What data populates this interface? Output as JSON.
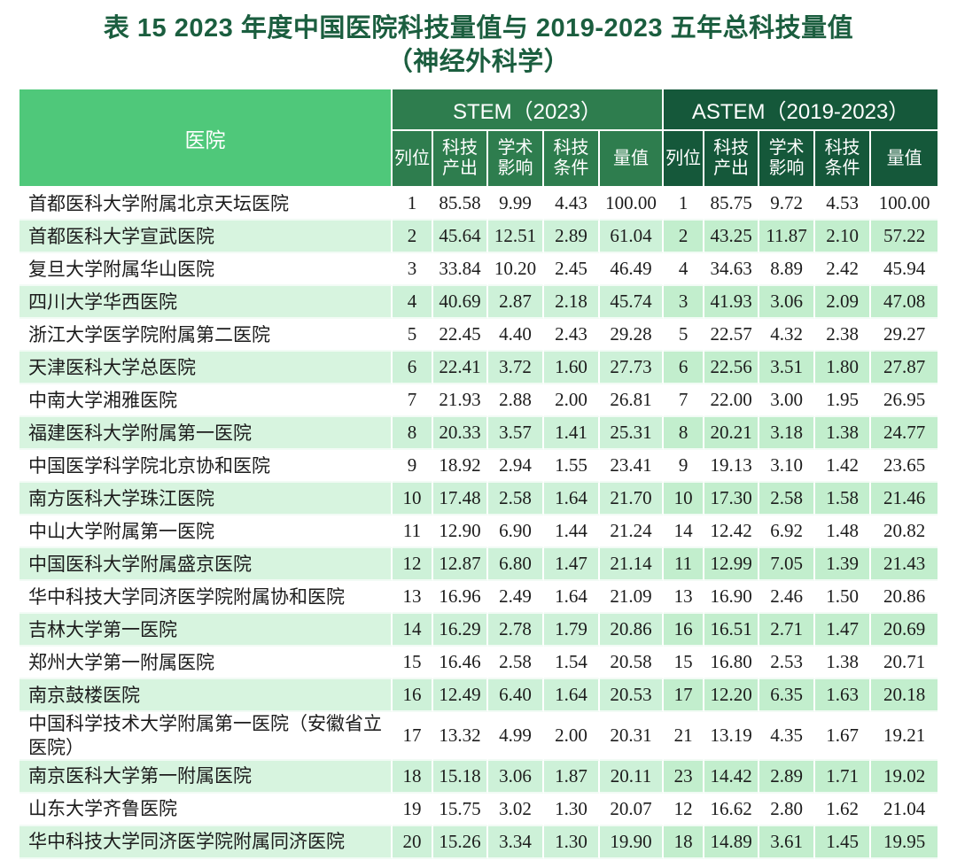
{
  "title": {
    "line1": "表 15   2023 年度中国医院科技量值与 2019-2023 五年总科技量值",
    "line2": "（神经外科学）"
  },
  "colors": {
    "title_text": "#1b5e3f",
    "header_hospital_bg": "#4fc87a",
    "header_stem_bg": "#2e7d4e",
    "header_astem_bg": "#15583a",
    "stripe_hospital_bg": "#d7f4df",
    "stripe_stem_bg": "#cdf1d8",
    "stripe_astem_bg": "#c2eecd"
  },
  "table": {
    "hospital_header": "医院",
    "stem_group_label": "STEM（2023）",
    "astem_group_label": "ASTEM（2019-2023）",
    "sub_headers": [
      "列位",
      "科技\n产出",
      "学术\n影响",
      "科技\n条件",
      "量值"
    ],
    "rows": [
      {
        "hospital": "首都医科大学附属北京天坛医院",
        "stem": [
          "1",
          "85.58",
          "9.99",
          "4.43",
          "100.00"
        ],
        "astem": [
          "1",
          "85.75",
          "9.72",
          "4.53",
          "100.00"
        ]
      },
      {
        "hospital": "首都医科大学宣武医院",
        "stem": [
          "2",
          "45.64",
          "12.51",
          "2.89",
          "61.04"
        ],
        "astem": [
          "2",
          "43.25",
          "11.87",
          "2.10",
          "57.22"
        ]
      },
      {
        "hospital": "复旦大学附属华山医院",
        "stem": [
          "3",
          "33.84",
          "10.20",
          "2.45",
          "46.49"
        ],
        "astem": [
          "4",
          "34.63",
          "8.89",
          "2.42",
          "45.94"
        ]
      },
      {
        "hospital": "四川大学华西医院",
        "stem": [
          "4",
          "40.69",
          "2.87",
          "2.18",
          "45.74"
        ],
        "astem": [
          "3",
          "41.93",
          "3.06",
          "2.09",
          "47.08"
        ]
      },
      {
        "hospital": "浙江大学医学院附属第二医院",
        "stem": [
          "5",
          "22.45",
          "4.40",
          "2.43",
          "29.28"
        ],
        "astem": [
          "5",
          "22.57",
          "4.32",
          "2.38",
          "29.27"
        ]
      },
      {
        "hospital": "天津医科大学总医院",
        "stem": [
          "6",
          "22.41",
          "3.72",
          "1.60",
          "27.73"
        ],
        "astem": [
          "6",
          "22.56",
          "3.51",
          "1.80",
          "27.87"
        ]
      },
      {
        "hospital": "中南大学湘雅医院",
        "stem": [
          "7",
          "21.93",
          "2.88",
          "2.00",
          "26.81"
        ],
        "astem": [
          "7",
          "22.00",
          "3.00",
          "1.95",
          "26.95"
        ]
      },
      {
        "hospital": "福建医科大学附属第一医院",
        "stem": [
          "8",
          "20.33",
          "3.57",
          "1.41",
          "25.31"
        ],
        "astem": [
          "8",
          "20.21",
          "3.18",
          "1.38",
          "24.77"
        ]
      },
      {
        "hospital": "中国医学科学院北京协和医院",
        "stem": [
          "9",
          "18.92",
          "2.94",
          "1.55",
          "23.41"
        ],
        "astem": [
          "9",
          "19.13",
          "3.10",
          "1.42",
          "23.65"
        ]
      },
      {
        "hospital": "南方医科大学珠江医院",
        "stem": [
          "10",
          "17.48",
          "2.58",
          "1.64",
          "21.70"
        ],
        "astem": [
          "10",
          "17.30",
          "2.58",
          "1.58",
          "21.46"
        ]
      },
      {
        "hospital": "中山大学附属第一医院",
        "stem": [
          "11",
          "12.90",
          "6.90",
          "1.44",
          "21.24"
        ],
        "astem": [
          "14",
          "12.42",
          "6.92",
          "1.48",
          "20.82"
        ]
      },
      {
        "hospital": "中国医科大学附属盛京医院",
        "stem": [
          "12",
          "12.87",
          "6.80",
          "1.47",
          "21.14"
        ],
        "astem": [
          "11",
          "12.99",
          "7.05",
          "1.39",
          "21.43"
        ]
      },
      {
        "hospital": "华中科技大学同济医学院附属协和医院",
        "stem": [
          "13",
          "16.96",
          "2.49",
          "1.64",
          "21.09"
        ],
        "astem": [
          "13",
          "16.90",
          "2.46",
          "1.50",
          "20.86"
        ]
      },
      {
        "hospital": "吉林大学第一医院",
        "stem": [
          "14",
          "16.29",
          "2.78",
          "1.79",
          "20.86"
        ],
        "astem": [
          "16",
          "16.51",
          "2.71",
          "1.47",
          "20.69"
        ]
      },
      {
        "hospital": "郑州大学第一附属医院",
        "stem": [
          "15",
          "16.46",
          "2.58",
          "1.54",
          "20.58"
        ],
        "astem": [
          "15",
          "16.80",
          "2.53",
          "1.38",
          "20.71"
        ]
      },
      {
        "hospital": "南京鼓楼医院",
        "stem": [
          "16",
          "12.49",
          "6.40",
          "1.64",
          "20.53"
        ],
        "astem": [
          "17",
          "12.20",
          "6.35",
          "1.63",
          "20.18"
        ]
      },
      {
        "hospital": "中国科学技术大学附属第一医院（安徽省立医院）",
        "stem": [
          "17",
          "13.32",
          "4.99",
          "2.00",
          "20.31"
        ],
        "astem": [
          "21",
          "13.19",
          "4.35",
          "1.67",
          "19.21"
        ]
      },
      {
        "hospital": "南京医科大学第一附属医院",
        "stem": [
          "18",
          "15.18",
          "3.06",
          "1.87",
          "20.11"
        ],
        "astem": [
          "23",
          "14.42",
          "2.89",
          "1.71",
          "19.02"
        ]
      },
      {
        "hospital": "山东大学齐鲁医院",
        "stem": [
          "19",
          "15.75",
          "3.02",
          "1.30",
          "20.07"
        ],
        "astem": [
          "12",
          "16.62",
          "2.80",
          "1.62",
          "21.04"
        ]
      },
      {
        "hospital": "华中科技大学同济医学院附属同济医院",
        "stem": [
          "20",
          "15.26",
          "3.34",
          "1.30",
          "19.90"
        ],
        "astem": [
          "18",
          "14.89",
          "3.61",
          "1.45",
          "19.95"
        ]
      }
    ]
  }
}
